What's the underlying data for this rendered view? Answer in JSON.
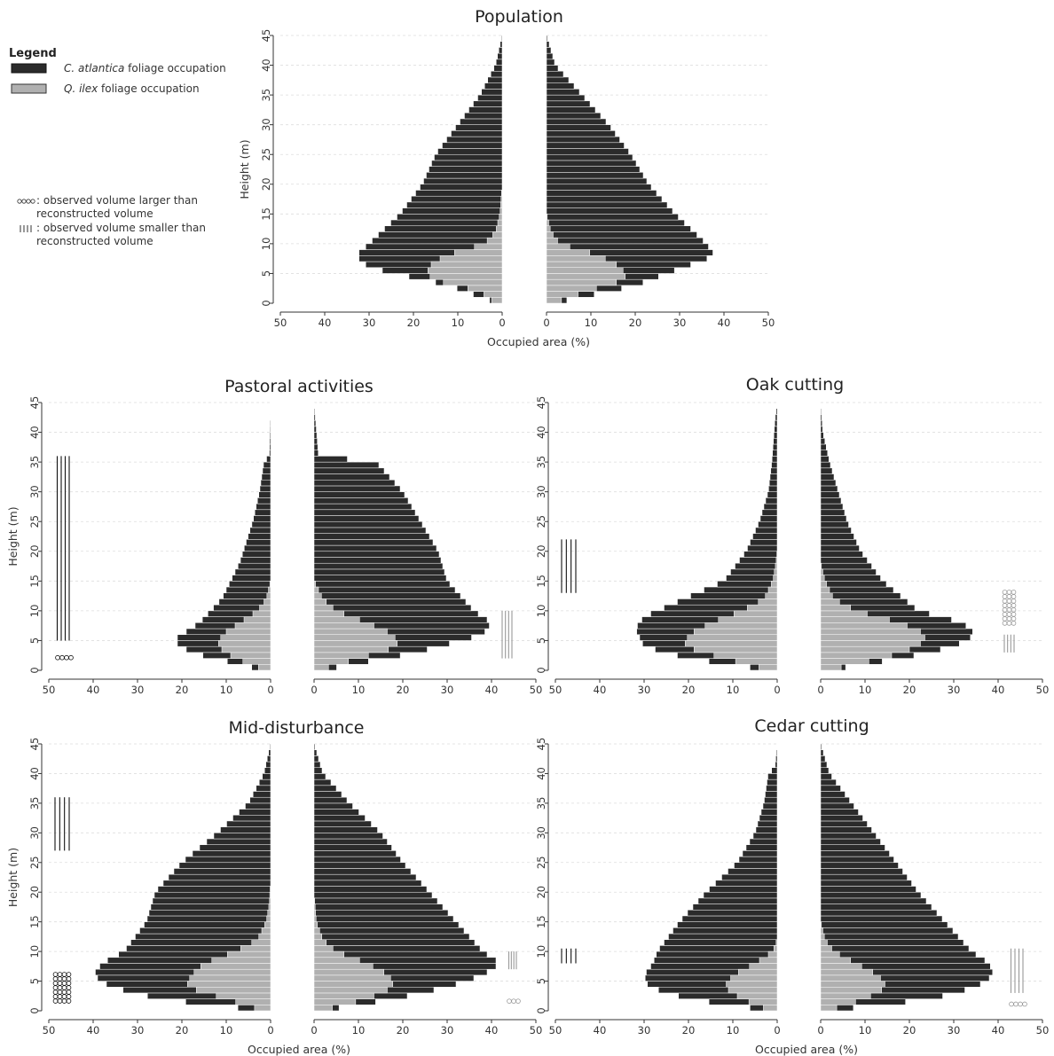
{
  "legend": {
    "title": "Legend",
    "dark_entry": {
      "species": "C. atlantica",
      "text": " foliage occupation",
      "color": "#2b2b2b"
    },
    "light_entry": {
      "species": "Q. ilex",
      "text": " foliage occupation",
      "color": "#b0b0b0"
    },
    "circle_note": [
      ": observed volume larger than",
      "reconstructed volume"
    ],
    "line_note": [
      ": observed volume smaller than",
      "reconstructed volume"
    ]
  },
  "chart_data": [
    {
      "type": "bar",
      "title": "Population",
      "ylabel": "Height (m)",
      "xlabel": "Occupied area (%)",
      "ylim": [
        0,
        45
      ],
      "yticks": [
        0,
        5,
        10,
        15,
        20,
        25,
        30,
        35,
        40,
        45
      ],
      "xlim": [
        0,
        50
      ],
      "xticks": [
        0,
        10,
        20,
        30,
        40,
        50
      ],
      "series": [
        {
          "name": "C. atlantica foliage occupation",
          "side": "left",
          "heights": [
            0,
            3,
            6,
            8,
            10,
            15,
            20,
            25,
            30,
            35,
            40,
            45
          ],
          "values": [
            1,
            12,
            30,
            33,
            30,
            23,
            18,
            15,
            10,
            5,
            1.5,
            0
          ]
        },
        {
          "name": "Q. ilex foliage occupation",
          "side": "left",
          "heights": [
            0,
            2,
            4,
            6,
            8,
            10,
            12,
            15,
            20
          ],
          "values": [
            1.5,
            5,
            16,
            17,
            13,
            4,
            1.5,
            0.5,
            0
          ]
        },
        {
          "name": "C. atlantica foliage occupation",
          "side": "right",
          "heights": [
            0,
            3,
            5,
            8,
            10,
            15,
            20,
            25,
            30,
            35,
            40,
            45
          ],
          "values": [
            1.5,
            20,
            27,
            38,
            36,
            29,
            23,
            19,
            14,
            8,
            2,
            0
          ]
        },
        {
          "name": "Q. ilex foliage occupation",
          "side": "right",
          "heights": [
            0,
            2,
            4,
            6,
            8,
            10,
            12,
            15
          ],
          "values": [
            1.5,
            9,
            18,
            17,
            12,
            3,
            1,
            0
          ]
        }
      ],
      "markers": []
    },
    {
      "type": "bar",
      "title": "Pastoral activities",
      "ylabel": "Height (m)",
      "xlabel": "",
      "ylim": [
        0,
        45
      ],
      "yticks": [
        0,
        5,
        10,
        15,
        20,
        25,
        30,
        35,
        40,
        45
      ],
      "xlim": [
        0,
        50
      ],
      "xticks": [
        0,
        10,
        20,
        30,
        40,
        50
      ],
      "series": [
        {
          "name": "C. atlantica foliage occupation",
          "side": "left",
          "heights": [
            0,
            3,
            5,
            8,
            12,
            18,
            25,
            30,
            35,
            36,
            45
          ],
          "values": [
            1.5,
            18,
            22,
            16,
            11,
            7,
            4,
            2.5,
            1.5,
            0.3,
            0
          ]
        },
        {
          "name": "Q. ilex foliage occupation",
          "side": "left",
          "heights": [
            0,
            2,
            4,
            6,
            8,
            10,
            12,
            15
          ],
          "values": [
            1,
            8,
            12,
            11,
            7,
            3,
            1,
            0
          ]
        },
        {
          "name": "C. atlantica foliage occupation",
          "side": "right",
          "heights": [
            0,
            3,
            6,
            8,
            10,
            15,
            20,
            25,
            30,
            35,
            36,
            45
          ],
          "values": [
            1.5,
            23,
            38,
            40,
            36,
            30,
            28,
            24,
            20,
            14,
            1,
            0
          ]
        },
        {
          "name": "Q. ilex foliage occupation",
          "side": "right",
          "heights": [
            0,
            2,
            4,
            6,
            8,
            10,
            12,
            15
          ],
          "values": [
            1,
            10,
            19,
            18,
            12,
            5,
            2,
            0
          ]
        }
      ],
      "markers": [
        {
          "kind": "lines",
          "color": "dark",
          "side": "left",
          "x": [
            45,
            48.5
          ],
          "y": [
            5,
            36
          ]
        },
        {
          "kind": "circles",
          "color": "dark",
          "side": "left",
          "x": [
            45,
            48.5
          ],
          "y": [
            1.5,
            2.5
          ]
        },
        {
          "kind": "lines",
          "color": "light",
          "side": "right",
          "x": [
            42,
            45
          ],
          "y": [
            2,
            10
          ]
        }
      ]
    },
    {
      "type": "bar",
      "title": "Oak cutting",
      "ylabel": "",
      "xlabel": "",
      "ylim": [
        0,
        45
      ],
      "yticks": [
        0,
        5,
        10,
        15,
        20,
        25,
        30,
        35,
        40,
        45
      ],
      "xlim": [
        0,
        50
      ],
      "xticks": [
        0,
        10,
        20,
        30,
        40,
        50
      ],
      "series": [
        {
          "name": "C. atlantica foliage occupation",
          "side": "left",
          "heights": [
            0,
            2,
            4,
            7,
            9,
            11,
            15,
            20,
            25,
            30,
            35,
            42,
            45
          ],
          "values": [
            1.5,
            20,
            30,
            32,
            30,
            24,
            12,
            7,
            4,
            2,
            1.2,
            0.5,
            0
          ]
        },
        {
          "name": "Q. ilex foliage occupation",
          "side": "left",
          "heights": [
            0,
            2,
            4,
            6,
            8,
            10,
            12,
            15,
            18,
            20
          ],
          "values": [
            1.5,
            12,
            21,
            20,
            15,
            8,
            3,
            1,
            0.3,
            0
          ]
        },
        {
          "name": "C. atlantica foliage occupation",
          "side": "right",
          "heights": [
            0,
            2,
            4,
            6,
            8,
            10,
            15,
            20,
            25,
            30,
            35,
            40,
            45
          ],
          "values": [
            1.5,
            18,
            30,
            35,
            32,
            22,
            14,
            9,
            6,
            4,
            2,
            0.5,
            0
          ]
        },
        {
          "name": "Q. ilex foliage occupation",
          "side": "right",
          "heights": [
            0,
            2,
            4,
            6,
            8,
            10,
            12,
            15,
            18
          ],
          "values": [
            1.5,
            14,
            22,
            24,
            18,
            8,
            3,
            1,
            0
          ]
        }
      ],
      "markers": [
        {
          "kind": "lines",
          "color": "dark",
          "side": "left",
          "x": [
            45,
            49
          ],
          "y": [
            13,
            22
          ]
        },
        {
          "kind": "circles",
          "color": "light",
          "side": "right",
          "x": [
            41,
            44
          ],
          "y": [
            7.5,
            13.5
          ]
        },
        {
          "kind": "lines",
          "color": "light",
          "side": "right",
          "x": [
            41,
            44
          ],
          "y": [
            3,
            6
          ]
        }
      ]
    },
    {
      "type": "bar",
      "title": "Mid-disturbance",
      "ylabel": "Height (m)",
      "xlabel": "Occupied area (%)",
      "ylim": [
        0,
        45
      ],
      "yticks": [
        0,
        5,
        10,
        15,
        20,
        25,
        30,
        35,
        40,
        45
      ],
      "xlim": [
        0,
        50
      ],
      "xticks": [
        0,
        10,
        20,
        30,
        40,
        50
      ],
      "series": [
        {
          "name": "C. atlantica foliage occupation",
          "side": "left",
          "heights": [
            0,
            2,
            4,
            6,
            8,
            10,
            15,
            20,
            25,
            30,
            35,
            40,
            45
          ],
          "values": [
            1.5,
            25,
            36,
            40,
            38,
            33,
            28,
            26,
            20,
            12,
            5,
            1.5,
            0
          ]
        },
        {
          "name": "Q. ilex foliage occupation",
          "side": "left",
          "heights": [
            0,
            2,
            4,
            6,
            8,
            10,
            12,
            15,
            18,
            22
          ],
          "values": [
            1.5,
            10,
            19,
            18,
            15,
            8,
            3,
            1,
            0.3,
            0
          ]
        },
        {
          "name": "C. atlantica foliage occupation",
          "side": "right",
          "heights": [
            0,
            2,
            4,
            6,
            8,
            10,
            15,
            20,
            25,
            30,
            35,
            40,
            45
          ],
          "values": [
            1.5,
            18,
            30,
            38,
            42,
            38,
            32,
            26,
            20,
            15,
            8,
            2,
            0
          ]
        },
        {
          "name": "Q. ilex foliage occupation",
          "side": "right",
          "heights": [
            0,
            2,
            4,
            6,
            8,
            10,
            12,
            15,
            20
          ],
          "values": [
            1.5,
            12,
            18,
            17,
            12,
            5,
            2,
            0.5,
            0
          ]
        }
      ],
      "markers": [
        {
          "kind": "lines",
          "color": "dark",
          "side": "left",
          "x": [
            45,
            49
          ],
          "y": [
            27,
            36
          ]
        },
        {
          "kind": "circles",
          "color": "dark",
          "side": "left",
          "x": [
            45,
            49
          ],
          "y": [
            1.5,
            6.5
          ]
        },
        {
          "kind": "lines",
          "color": "light",
          "side": "right",
          "x": [
            43.5,
            46
          ],
          "y": [
            7,
            10
          ]
        },
        {
          "kind": "circles",
          "color": "light",
          "side": "right",
          "x": [
            43.5,
            46
          ],
          "y": [
            1,
            2
          ]
        }
      ]
    },
    {
      "type": "bar",
      "title": "Cedar cutting",
      "ylabel": "",
      "xlabel": "Occupied area (%)",
      "ylim": [
        0,
        45
      ],
      "yticks": [
        0,
        5,
        10,
        15,
        20,
        25,
        30,
        35,
        40,
        45
      ],
      "xlim": [
        0,
        50
      ],
      "xticks": [
        0,
        10,
        20,
        30,
        40,
        50
      ],
      "series": [
        {
          "name": "C. atlantica foliage occupation",
          "side": "left",
          "heights": [
            0,
            2,
            4,
            6,
            8,
            10,
            15,
            20,
            25,
            30,
            35,
            40,
            41,
            45
          ],
          "values": [
            1.5,
            20,
            29,
            30,
            28,
            27,
            22,
            16,
            9,
            5,
            3,
            2,
            0.5,
            0
          ]
        },
        {
          "name": "Q. ilex foliage occupation",
          "side": "left",
          "heights": [
            0,
            2,
            4,
            6,
            8,
            10,
            12
          ],
          "values": [
            1.5,
            8,
            12,
            10,
            5,
            1,
            0
          ]
        },
        {
          "name": "C. atlantica foliage occupation",
          "side": "right",
          "heights": [
            0,
            2,
            4,
            6,
            8,
            10,
            15,
            20,
            25,
            30,
            35,
            40,
            45
          ],
          "values": [
            1.5,
            25,
            35,
            39,
            38,
            34,
            28,
            22,
            17,
            12,
            7,
            2,
            0
          ]
        },
        {
          "name": "Q. ilex foliage occupation",
          "side": "right",
          "heights": [
            0,
            2,
            4,
            6,
            8,
            10,
            12,
            15
          ],
          "values": [
            1.5,
            10,
            15,
            13,
            8,
            3,
            1,
            0
          ]
        }
      ],
      "markers": [
        {
          "kind": "lines",
          "color": "dark",
          "side": "left",
          "x": [
            45,
            49
          ],
          "y": [
            8,
            10.5
          ]
        },
        {
          "kind": "lines",
          "color": "light",
          "side": "right",
          "x": [
            42.5,
            46
          ],
          "y": [
            3,
            10.5
          ]
        },
        {
          "kind": "circles",
          "color": "light",
          "side": "right",
          "x": [
            42.5,
            46
          ],
          "y": [
            0.5,
            1.5
          ]
        }
      ]
    }
  ]
}
